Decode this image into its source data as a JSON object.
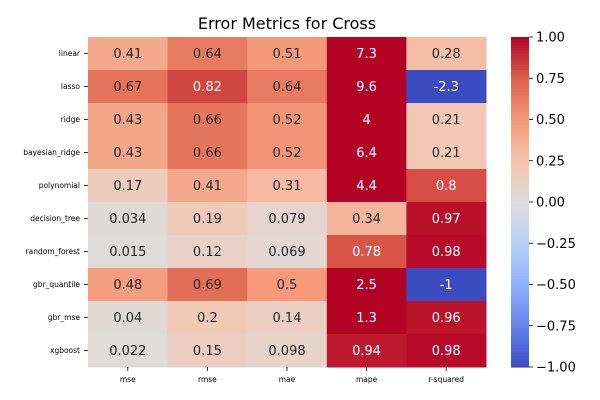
{
  "chart_data": {
    "type": "heatmap",
    "title": "Error Metrics for Cross",
    "xlabel": "",
    "ylabel": "",
    "columns": [
      "mse",
      "rmse",
      "mae",
      "mape",
      "r-squared"
    ],
    "rows": [
      "linear",
      "lasso",
      "ridge",
      "bayesian_ridge",
      "polynomial",
      "decision_tree",
      "random_forest",
      "gbr_quantile",
      "gbr_mse",
      "xgboost"
    ],
    "values": [
      [
        0.41,
        0.64,
        0.51,
        7.3,
        0.28
      ],
      [
        0.67,
        0.82,
        0.64,
        9.6,
        -2.3
      ],
      [
        0.43,
        0.66,
        0.52,
        4,
        0.21
      ],
      [
        0.43,
        0.66,
        0.52,
        6.4,
        0.21
      ],
      [
        0.17,
        0.41,
        0.31,
        4.4,
        0.8
      ],
      [
        0.034,
        0.19,
        0.079,
        0.34,
        0.97
      ],
      [
        0.015,
        0.12,
        0.069,
        0.78,
        0.98
      ],
      [
        0.48,
        0.69,
        0.5,
        2.5,
        -1
      ],
      [
        0.04,
        0.2,
        0.14,
        1.3,
        0.96
      ],
      [
        0.022,
        0.15,
        0.098,
        0.94,
        0.98
      ]
    ],
    "value_labels": [
      [
        "0.41",
        "0.64",
        "0.51",
        "7.3",
        "0.28"
      ],
      [
        "0.67",
        "0.82",
        "0.64",
        "9.6",
        "-2.3"
      ],
      [
        "0.43",
        "0.66",
        "0.52",
        "4",
        "0.21"
      ],
      [
        "0.43",
        "0.66",
        "0.52",
        "6.4",
        "0.21"
      ],
      [
        "0.17",
        "0.41",
        "0.31",
        "4.4",
        "0.8"
      ],
      [
        "0.034",
        "0.19",
        "0.079",
        "0.34",
        "0.97"
      ],
      [
        "0.015",
        "0.12",
        "0.069",
        "0.78",
        "0.98"
      ],
      [
        "0.48",
        "0.69",
        "0.5",
        "2.5",
        "-1"
      ],
      [
        "0.04",
        "0.2",
        "0.14",
        "1.3",
        "0.96"
      ],
      [
        "0.022",
        "0.15",
        "0.098",
        "0.94",
        "0.98"
      ]
    ],
    "colormap": "coolwarm",
    "color_range": [
      -1,
      1
    ],
    "colorbar_ticks": [
      "1.00",
      "0.75",
      "0.50",
      "0.25",
      "0.00",
      "−0.25",
      "−0.50",
      "−0.75",
      "−1.00"
    ],
    "colorbar_tick_values": [
      1,
      0.75,
      0.5,
      0.25,
      0,
      -0.25,
      -0.5,
      -0.75,
      -1
    ],
    "grid": false,
    "legend": "colorbar-right"
  }
}
